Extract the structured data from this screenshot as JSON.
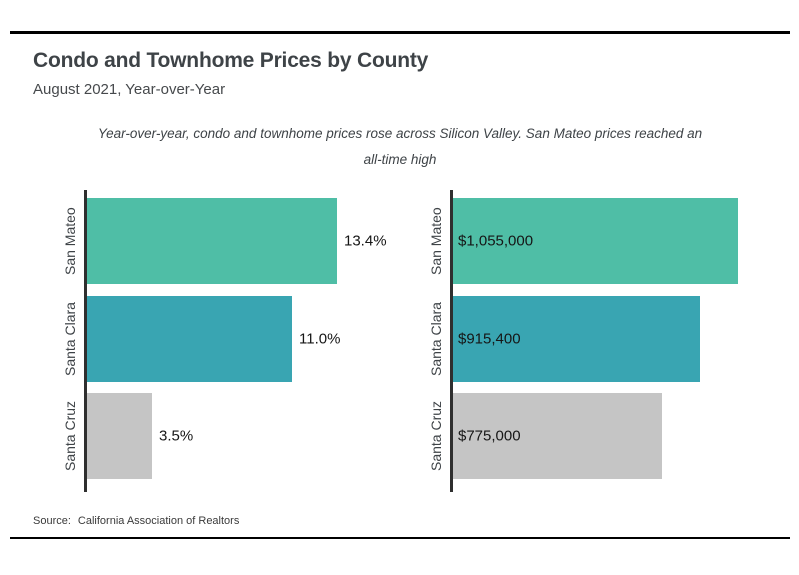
{
  "header": {
    "title": "Condo and Townhome Prices by County",
    "subtitle": "August 2021, Year-over-Year",
    "annotation": "Year-over-year, condo and townhome prices rose across Silicon Valley. San Mateo prices reached an all-time high"
  },
  "footer": {
    "source_label": "Source:",
    "source_text": "California Association of Realtors"
  },
  "colors": {
    "bar_san_mateo": "#4fbea6",
    "bar_santa_clara": "#39a5b2",
    "bar_santa_cruz": "#c5c5c5",
    "axis": "#2f2f2f",
    "title_text": "#3e4347",
    "rule": "#000000"
  },
  "chart_data": [
    {
      "type": "bar",
      "orientation": "horizontal",
      "categories": [
        "San Mateo",
        "Santa Clara",
        "Santa Cruz"
      ],
      "values": [
        13.4,
        11.0,
        3.5
      ],
      "value_labels": [
        "13.4%",
        "11.0%",
        "3.5%"
      ],
      "unit": "percent year-over-year change",
      "value_label_position": "outside-right",
      "xlim": [
        0,
        14.5
      ],
      "grid": false,
      "legend": "none",
      "bar_colors": [
        "#4fbea6",
        "#39a5b2",
        "#c5c5c5"
      ]
    },
    {
      "type": "bar",
      "orientation": "horizontal",
      "categories": [
        "San Mateo",
        "Santa Clara",
        "Santa Cruz"
      ],
      "values": [
        1055000,
        915400,
        775000
      ],
      "value_labels": [
        "$1,055,000",
        "$915,400",
        "$775,000"
      ],
      "unit": "USD median price",
      "value_label_position": "inside-left",
      "xlim": [
        0,
        1300000
      ],
      "grid": false,
      "legend": "none",
      "bar_colors": [
        "#4fbea6",
        "#39a5b2",
        "#c5c5c5"
      ]
    }
  ]
}
